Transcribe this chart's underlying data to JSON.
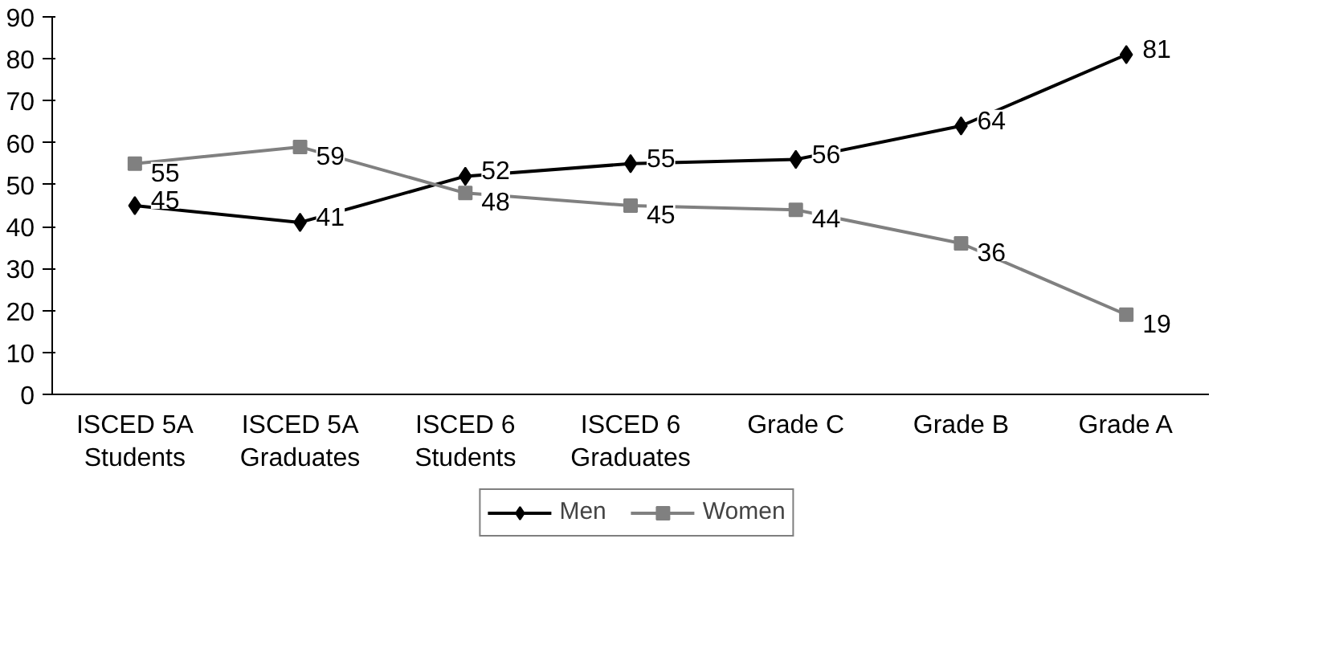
{
  "chart_data": {
    "type": "line",
    "categories": [
      "ISCED 5A\nStudents",
      "ISCED 5A\nGraduates",
      "ISCED 6\nStudents",
      "ISCED 6\nGraduates",
      "Grade C",
      "Grade B",
      "Grade A"
    ],
    "series": [
      {
        "name": "Men",
        "color": "#000000",
        "marker": "diamond",
        "values": [
          45,
          41,
          52,
          55,
          56,
          64,
          81
        ]
      },
      {
        "name": "Women",
        "color": "#808080",
        "marker": "square",
        "values": [
          55,
          59,
          48,
          45,
          44,
          36,
          19
        ]
      }
    ],
    "ylim": [
      0,
      90
    ],
    "yticks": [
      0,
      10,
      20,
      30,
      40,
      50,
      60,
      70,
      80,
      90
    ],
    "grid": false,
    "legend": "bottom",
    "data_labels": true,
    "line_style": "solid"
  }
}
